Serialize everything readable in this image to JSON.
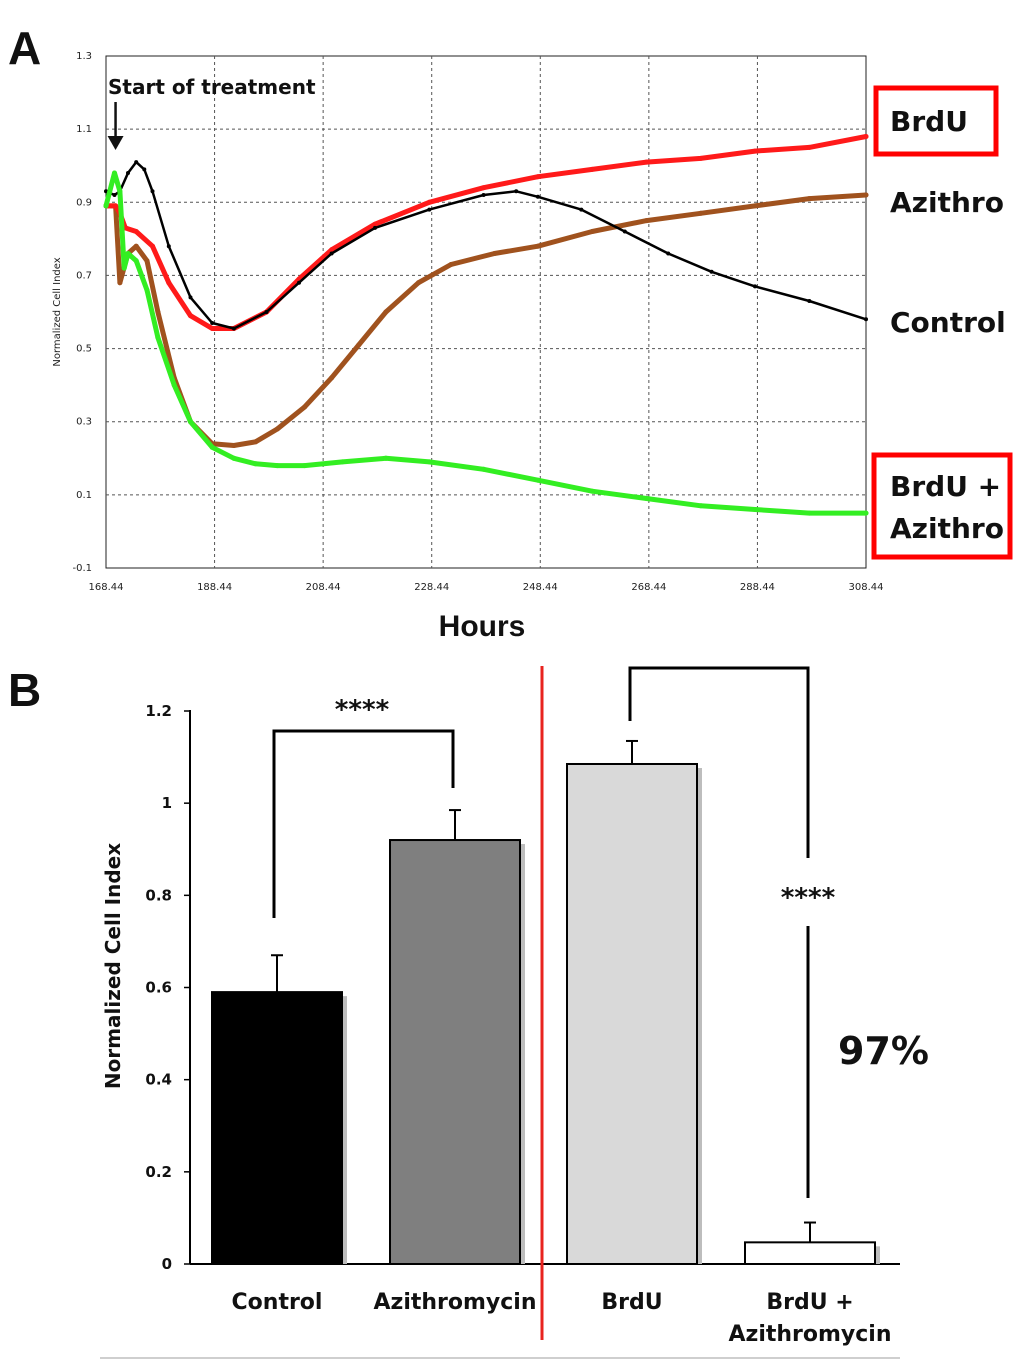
{
  "chart_data": [
    {
      "type": "line",
      "panel": "A",
      "xlabel": "Hours",
      "ylabel": "Normalized Cell Index",
      "xticks": [
        "168.44",
        "188.44",
        "208.44",
        "228.44",
        "248.44",
        "268.44",
        "288.44",
        "308.44"
      ],
      "yticks": [
        "-0.1",
        "0.1",
        "0.3",
        "0.5",
        "0.7",
        "0.9",
        "1.1",
        "1.3"
      ],
      "xlim": [
        168.44,
        308.44
      ],
      "ylim": [
        -0.1,
        1.3
      ],
      "grid": true,
      "annotation": "Start of treatment",
      "annotation_x": 170.2,
      "series": [
        {
          "name": "BrdU",
          "color": "#ff1a1a",
          "boxed": true,
          "x": [
            168.44,
            170.2,
            171,
            172,
            174,
            177,
            180,
            184,
            188,
            192,
            198,
            204,
            210,
            218,
            228,
            238,
            248,
            258,
            268,
            278,
            288,
            298,
            308.44
          ],
          "y": [
            0.89,
            0.89,
            0.87,
            0.83,
            0.82,
            0.78,
            0.68,
            0.59,
            0.555,
            0.555,
            0.6,
            0.69,
            0.77,
            0.84,
            0.9,
            0.94,
            0.97,
            0.99,
            1.01,
            1.02,
            1.04,
            1.05,
            1.08
          ]
        },
        {
          "name": "Azithro",
          "color": "#a0521e",
          "boxed": false,
          "x": [
            168.44,
            170.2,
            171,
            172.5,
            174,
            176,
            178,
            181,
            184,
            188,
            192,
            196,
            200,
            205,
            210,
            215,
            220,
            226,
            232,
            240,
            248,
            258,
            268,
            278,
            288,
            298,
            308.44
          ],
          "y": [
            0.89,
            0.89,
            0.68,
            0.76,
            0.78,
            0.74,
            0.6,
            0.42,
            0.3,
            0.24,
            0.235,
            0.245,
            0.28,
            0.34,
            0.42,
            0.51,
            0.6,
            0.68,
            0.73,
            0.76,
            0.78,
            0.82,
            0.85,
            0.87,
            0.89,
            0.91,
            0.92
          ]
        },
        {
          "name": "Control",
          "color": "#000000",
          "boxed": false,
          "x": [
            168.44,
            170,
            171,
            172.5,
            174,
            175.5,
            177,
            180,
            184,
            188,
            192,
            198,
            204,
            210,
            218,
            228,
            238,
            244,
            248,
            256,
            264,
            272,
            280,
            288,
            298,
            308.44
          ],
          "y": [
            0.93,
            0.92,
            0.93,
            0.98,
            1.01,
            0.99,
            0.93,
            0.78,
            0.64,
            0.57,
            0.555,
            0.6,
            0.68,
            0.76,
            0.83,
            0.88,
            0.92,
            0.93,
            0.915,
            0.88,
            0.82,
            0.76,
            0.71,
            0.67,
            0.63,
            0.58
          ]
        },
        {
          "name": "BrdU +\nAzithro",
          "color": "#33ee22",
          "boxed": true,
          "x": [
            168.44,
            170,
            171,
            171.8,
            172.5,
            174,
            176,
            178,
            181,
            184,
            188,
            192,
            196,
            200,
            205,
            212,
            220,
            228,
            238,
            248,
            258,
            268,
            278,
            288,
            298,
            308.44
          ],
          "y": [
            0.89,
            0.98,
            0.93,
            0.72,
            0.76,
            0.74,
            0.66,
            0.53,
            0.4,
            0.3,
            0.23,
            0.2,
            0.185,
            0.18,
            0.18,
            0.19,
            0.2,
            0.19,
            0.17,
            0.14,
            0.11,
            0.09,
            0.07,
            0.06,
            0.05,
            0.05
          ]
        }
      ]
    },
    {
      "type": "bar",
      "panel": "B",
      "xlabel": "",
      "ylabel": "Normalized Cell Index",
      "ylim": [
        0,
        1.2
      ],
      "yticks": [
        "0",
        "0.2",
        "0.4",
        "0.6",
        "0.8",
        "1",
        "1.2"
      ],
      "categories": [
        "Control",
        "Azithromycin",
        "BrdU",
        "BrdU +\nAzithromycin"
      ],
      "values": [
        0.59,
        0.92,
        1.085,
        0.047
      ],
      "errors": [
        0.08,
        0.065,
        0.05,
        0.043
      ],
      "colors": [
        "#000000",
        "#7f7f7f",
        "#d9d9d9",
        "#ffffff"
      ],
      "comparisons": [
        {
          "between": [
            "Control",
            "Azithromycin"
          ],
          "label": "****"
        },
        {
          "between": [
            "BrdU",
            "BrdU +\nAzithromycin"
          ],
          "label": "****",
          "reduction": "97%"
        }
      ]
    }
  ],
  "panels": {
    "a_letter": "A",
    "b_letter": "B"
  },
  "colors": {
    "box": "#ff0000",
    "divider": "#e8231f",
    "grid": "#555555"
  }
}
